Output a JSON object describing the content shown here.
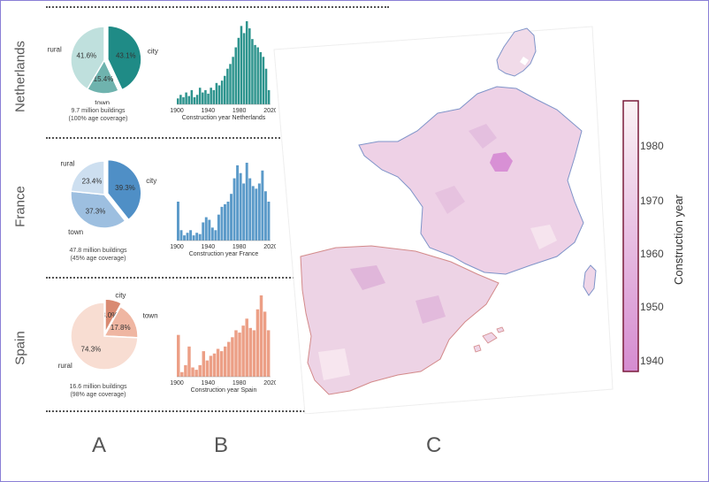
{
  "rows": [
    {
      "country": "Netherlands",
      "buildings": "9.7 million buildings",
      "coverage": "(100% age coverage)",
      "pie": [
        {
          "label": "city",
          "pct_text": "43.1%",
          "value": 43.1,
          "color": "#1f8b86"
        },
        {
          "label": "town",
          "pct_text": "15.4%",
          "value": 15.4,
          "color": "#6fb3ae"
        },
        {
          "label": "rural",
          "pct_text": "41.6%",
          "value": 41.6,
          "color": "#bfe0dd"
        }
      ],
      "hist_color": "#2e948e",
      "hist_xlabel": "Construction year Netherlands",
      "hist_ticks": [
        "1900",
        "1940",
        "1980",
        "2020"
      ],
      "hist_values": [
        5,
        8,
        6,
        10,
        7,
        12,
        6,
        8,
        14,
        10,
        12,
        9,
        14,
        12,
        18,
        16,
        20,
        24,
        30,
        34,
        40,
        48,
        56,
        66,
        60,
        70,
        64,
        55,
        50,
        48,
        44,
        40,
        30,
        12
      ]
    },
    {
      "country": "France",
      "buildings": "47.8 million buildings",
      "coverage": "(45% age coverage)",
      "pie": [
        {
          "label": "city",
          "pct_text": "39.3%",
          "value": 39.3,
          "color": "#4f8fc6"
        },
        {
          "label": "town",
          "pct_text": "37.3%",
          "value": 37.3,
          "color": "#9dbfe0"
        },
        {
          "label": "rural",
          "pct_text": "23.4%",
          "value": 23.4,
          "color": "#cddff0"
        }
      ],
      "hist_color": "#5b9ac9",
      "hist_xlabel": "Construction year France",
      "hist_ticks": [
        "1900",
        "1940",
        "1980",
        "2020"
      ],
      "hist_values": [
        30,
        8,
        4,
        6,
        8,
        4,
        6,
        5,
        14,
        18,
        16,
        10,
        8,
        20,
        26,
        28,
        30,
        36,
        48,
        58,
        52,
        44,
        60,
        48,
        42,
        40,
        44,
        54,
        38,
        30
      ]
    },
    {
      "country": "Spain",
      "buildings": "16.6 million buildings",
      "coverage": "(98% age coverage)",
      "pie": [
        {
          "label": "city",
          "pct_text": "8.0%",
          "value": 8.0,
          "color": "#d98a72"
        },
        {
          "label": "town",
          "pct_text": "17.8%",
          "value": 17.8,
          "color": "#efb6a2"
        },
        {
          "label": "rural",
          "pct_text": "74.3%",
          "value": 74.3,
          "color": "#f8ddd2"
        }
      ],
      "hist_color": "#ec9f86",
      "hist_xlabel": "Construction year Spain",
      "hist_ticks": [
        "1900",
        "1940",
        "1980",
        "2020"
      ],
      "hist_values": [
        36,
        4,
        10,
        26,
        8,
        6,
        10,
        22,
        14,
        18,
        20,
        24,
        22,
        26,
        30,
        34,
        40,
        38,
        44,
        50,
        42,
        40,
        58,
        70,
        56,
        40
      ]
    }
  ],
  "panel_letters": [
    "A",
    "B",
    "C"
  ],
  "colorbar": {
    "label": "Construction year",
    "ticks": [
      "1980",
      "1970",
      "1960",
      "1950",
      "1940"
    ],
    "color_old": "#d58bd0",
    "color_new": "#fbf3f5"
  }
}
